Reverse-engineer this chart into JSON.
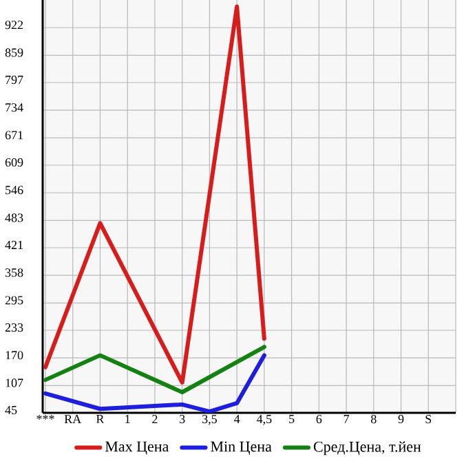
{
  "chart_data": {
    "type": "line",
    "categories": [
      "***",
      "RA",
      "R",
      "1",
      "2",
      "3",
      "3,5",
      "4",
      "4,5",
      "5",
      "6",
      "7",
      "8",
      "9",
      "S"
    ],
    "ylim": [
      45,
      985
    ],
    "yticks": [
      45,
      107,
      170,
      233,
      295,
      358,
      421,
      483,
      546,
      609,
      671,
      734,
      797,
      859,
      922
    ],
    "grid": true,
    "legend": "bottom",
    "marker": "none",
    "line_style": "solid",
    "series": [
      {
        "name": "Max Цена",
        "color": "#d71c1c",
        "values": [
          149,
          null,
          477,
          null,
          null,
          114,
          null,
          970,
          214,
          null,
          null,
          null,
          null,
          null,
          null
        ]
      },
      {
        "name": "Min Цена",
        "color": "#1e1ede",
        "values": [
          89,
          null,
          54,
          null,
          null,
          64,
          48,
          67,
          176,
          null,
          null,
          null,
          null,
          null,
          null
        ]
      },
      {
        "name": "Сред.Цена, т.йен",
        "color": "#138213",
        "values": [
          120,
          null,
          176,
          null,
          null,
          92,
          null,
          null,
          195,
          null,
          null,
          null,
          null,
          null,
          null
        ]
      }
    ]
  }
}
